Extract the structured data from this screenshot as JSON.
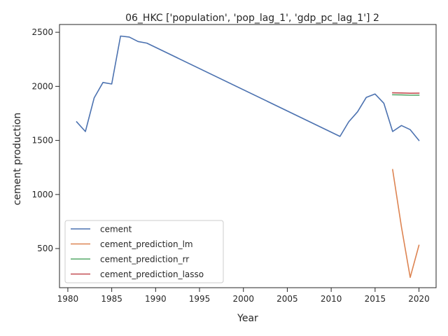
{
  "chart_data": {
    "type": "line",
    "title": "06_HKC ['population', 'pop_lag_1', 'gdp_pc_lag_1'] 2",
    "xlabel": "Year",
    "ylabel": "cement production",
    "xlim": [
      1979.05,
      2021.95
    ],
    "ylim": [
      138,
      2572
    ],
    "x_ticks": [
      1980,
      1985,
      1990,
      1995,
      2000,
      2005,
      2010,
      2015,
      2020
    ],
    "y_ticks": [
      500,
      1000,
      1500,
      2000,
      2500
    ],
    "grid": false,
    "legend_position": "lower-left",
    "series": [
      {
        "name": "cement",
        "color": "#4c72b0",
        "x": [
          1981,
          1982,
          1983,
          1984,
          1985,
          1986,
          1987,
          1988,
          1989,
          2011,
          2012,
          2013,
          2014,
          2015,
          2016,
          2017,
          2018,
          2019,
          2020
        ],
        "y": [
          1672,
          1582,
          1893,
          2036,
          2022,
          2465,
          2456,
          2415,
          2400,
          1537,
          1672,
          1765,
          1898,
          1929,
          1843,
          1582,
          1638,
          1600,
          1500
        ]
      },
      {
        "name": "cement_prediction_lm",
        "color": "#dd8452",
        "x": [
          2017,
          2018,
          2019,
          2020
        ],
        "y": [
          1230,
          700,
          233,
          530
        ]
      },
      {
        "name": "cement_prediction_rr",
        "color": "#55a868",
        "x": [
          2017,
          2018,
          2019,
          2020
        ],
        "y": [
          1922,
          1921,
          1918,
          1919
        ]
      },
      {
        "name": "cement_prediction_lasso",
        "color": "#c44e52",
        "x": [
          2017,
          2018,
          2019,
          2020
        ],
        "y": [
          1940,
          1939,
          1936,
          1937
        ]
      }
    ]
  }
}
